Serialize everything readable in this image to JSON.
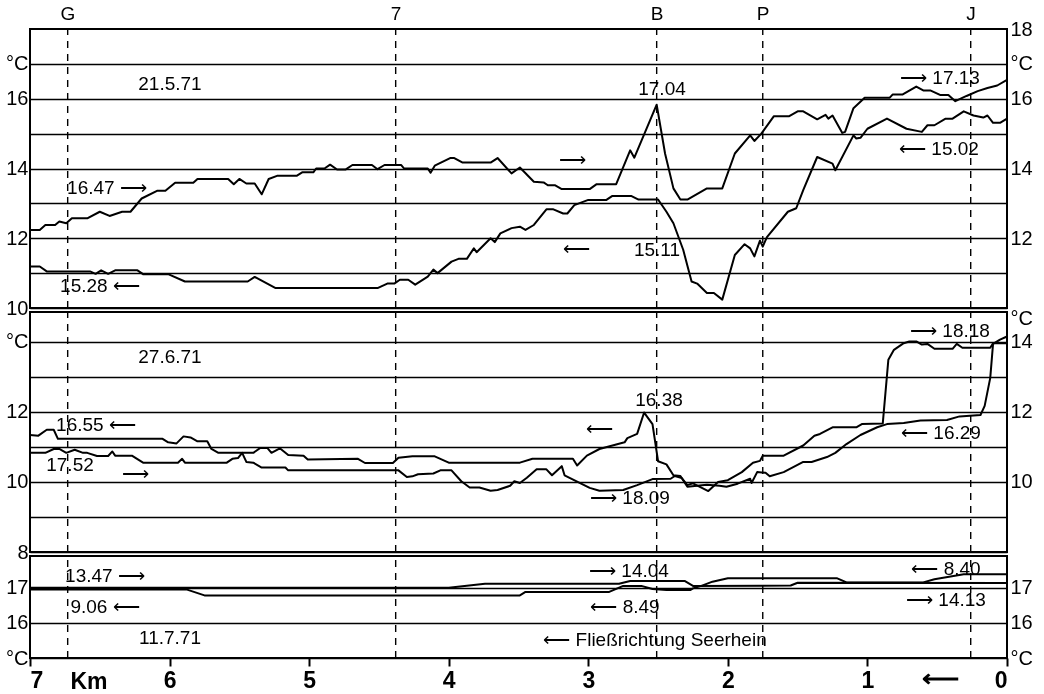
{
  "chart_data": [
    {
      "type": "line",
      "title": "21.5.71",
      "xlim": [
        7,
        0
      ],
      "ylim": [
        10,
        18
      ],
      "yticks": [
        10,
        {
          "value": 11,
          "label": null
        },
        12,
        {
          "value": 13,
          "label": null
        },
        14,
        {
          "value": 15,
          "label": null
        },
        16,
        {
          "value": 17,
          "label": "°C"
        }
      ],
      "y2lim": [
        10,
        18
      ],
      "y2ticks": [
        12,
        14,
        16,
        {
          "value": 17,
          "label": "°C"
        },
        18
      ],
      "grid": "y",
      "tick_labels": "y",
      "line_style": "solid",
      "ref_lines": [
        {
          "axis": "x",
          "value": 6.73,
          "label": null,
          "line_style": "dashed"
        },
        {
          "axis": "x",
          "value": 4.38,
          "label": null,
          "line_style": "dashed"
        },
        {
          "axis": "x",
          "value": 2.51,
          "label": null,
          "line_style": "dashed"
        },
        {
          "axis": "x",
          "value": 1.75,
          "label": null,
          "line_style": "dashed"
        },
        {
          "axis": "x",
          "value": 0.26,
          "label": null,
          "line_style": "dashed"
        }
      ],
      "annotations": [
        "16.47 ⟶",
        "15.28 ⟵",
        "17.04",
        "⟶",
        "⟵",
        "15.11",
        "⟶ 17.13",
        "⟵ 15.02",
        "G",
        "7",
        "B",
        "P",
        "J"
      ],
      "series": [
        {
          "color": "#000000",
          "x": [
            7.0,
            6.93,
            6.89,
            6.82,
            6.79,
            6.74,
            6.7,
            6.59,
            6.5,
            6.43,
            6.34,
            6.28,
            6.2,
            6.09,
            6.03,
            5.96,
            5.83,
            5.8,
            5.58,
            5.54,
            5.5,
            5.45,
            5.39,
            5.34,
            5.29,
            5.23,
            5.09,
            5.05,
            4.97,
            4.95,
            4.89,
            4.85,
            4.8,
            4.74,
            4.69,
            4.55,
            4.51,
            4.46,
            4.34,
            4.32,
            4.15,
            4.13,
            4.1,
            3.99,
            3.96,
            3.9,
            3.7,
            3.65,
            3.55,
            3.49,
            3.39,
            3.32,
            3.29,
            3.24,
            3.19,
            2.99,
            2.94,
            2.8,
            2.7,
            2.67,
            2.51,
            2.45,
            2.39,
            2.34,
            2.29,
            2.15,
            2.04,
            1.95,
            1.84,
            1.81,
            1.76,
            1.67,
            1.56,
            1.5,
            1.46,
            1.36,
            1.3,
            1.28,
            1.25,
            1.18,
            1.16,
            1.1,
            1.02,
            0.84,
            0.82,
            0.75,
            0.65,
            0.6,
            0.55,
            0.48,
            0.42,
            0.37,
            0.29,
            0.21,
            0.14,
            0.07,
            0.0
          ],
          "values": [
            12.24,
            12.24,
            12.38,
            12.38,
            12.48,
            12.43,
            12.57,
            12.57,
            12.76,
            12.64,
            12.76,
            12.76,
            13.14,
            13.36,
            13.36,
            13.59,
            13.59,
            13.7,
            13.7,
            13.55,
            13.7,
            13.57,
            13.57,
            13.26,
            13.7,
            13.79,
            13.79,
            13.89,
            13.89,
            14.0,
            14.0,
            14.11,
            13.97,
            13.97,
            14.1,
            14.1,
            13.98,
            14.1,
            14.1,
            14.0,
            14.0,
            13.88,
            14.08,
            14.3,
            14.3,
            14.17,
            14.17,
            14.3,
            13.86,
            14.03,
            13.62,
            13.6,
            13.52,
            13.52,
            13.41,
            13.41,
            13.55,
            13.55,
            14.52,
            14.31,
            15.83,
            14.43,
            13.43,
            13.11,
            13.11,
            13.43,
            13.43,
            14.43,
            14.95,
            14.79,
            15.0,
            15.5,
            15.5,
            15.64,
            15.64,
            15.41,
            15.54,
            15.43,
            15.52,
            15.02,
            15.05,
            15.73,
            16.03,
            16.03,
            16.12,
            16.12,
            16.35,
            16.24,
            16.24,
            16.11,
            16.11,
            15.93,
            16.08,
            16.22,
            16.31,
            16.38,
            16.54
          ]
        },
        {
          "color": "#000000",
          "x": [
            7.0,
            6.93,
            6.88,
            6.57,
            6.53,
            6.49,
            6.44,
            6.39,
            6.23,
            6.19,
            6.01,
            5.89,
            5.44,
            5.39,
            5.24,
            4.51,
            4.44,
            4.39,
            4.35,
            4.29,
            4.24,
            4.15,
            4.11,
            4.08,
            3.98,
            3.93,
            3.87,
            3.82,
            3.8,
            3.7,
            3.67,
            3.63,
            3.55,
            3.49,
            3.45,
            3.39,
            3.3,
            3.25,
            3.18,
            3.15,
            3.1,
            3.0,
            2.87,
            2.83,
            2.69,
            2.64,
            2.5,
            2.44,
            2.39,
            2.32,
            2.26,
            2.22,
            2.15,
            2.1,
            2.04,
            1.95,
            1.88,
            1.84,
            1.81,
            1.77,
            1.75,
            1.72,
            1.57,
            1.51,
            1.46,
            1.36,
            1.25,
            1.23,
            1.1,
            1.08,
            1.05,
            1.0,
            0.86,
            0.72,
            0.61,
            0.57,
            0.52,
            0.44,
            0.39,
            0.31,
            0.24,
            0.17,
            0.14,
            0.1,
            0.05,
            0.0
          ],
          "values": [
            11.19,
            11.19,
            11.05,
            11.05,
            10.98,
            11.08,
            10.98,
            11.08,
            11.08,
            10.97,
            10.97,
            10.76,
            10.76,
            10.89,
            10.57,
            10.57,
            10.7,
            10.7,
            10.81,
            10.81,
            10.67,
            10.9,
            11.1,
            11.0,
            11.33,
            11.41,
            11.41,
            11.71,
            11.6,
            12.0,
            11.89,
            12.14,
            12.29,
            12.33,
            12.24,
            12.38,
            12.83,
            12.83,
            12.71,
            12.71,
            12.95,
            13.1,
            13.1,
            13.21,
            13.21,
            13.11,
            13.11,
            12.76,
            12.43,
            11.67,
            10.76,
            10.7,
            10.43,
            10.43,
            10.24,
            11.52,
            11.83,
            11.71,
            11.48,
            11.93,
            11.76,
            12.03,
            12.76,
            12.86,
            13.38,
            14.33,
            14.14,
            13.95,
            14.95,
            14.86,
            14.88,
            15.14,
            15.43,
            15.14,
            15.05,
            15.24,
            15.24,
            15.43,
            15.43,
            15.64,
            15.52,
            15.46,
            15.52,
            15.31,
            15.31,
            15.43
          ]
        }
      ]
    },
    {
      "type": "line",
      "title": "27.6.71",
      "xlim": [
        7,
        0
      ],
      "ylim": [
        8,
        14.85
      ],
      "yticks": [
        8,
        {
          "value": 9,
          "label": null
        },
        10,
        {
          "value": 11,
          "label": null
        },
        12,
        {
          "value": 13,
          "label": null
        },
        {
          "value": 14,
          "label": "°C"
        }
      ],
      "y2lim": [
        8,
        14.85
      ],
      "y2ticks": [
        10,
        12,
        14
      ],
      "y2label": "°C",
      "grid": "y",
      "tick_labels": "y",
      "line_style": "solid",
      "ref_lines": [
        {
          "axis": "x",
          "value": 6.73,
          "label": null,
          "line_style": "dashed"
        },
        {
          "axis": "x",
          "value": 4.38,
          "label": null,
          "line_style": "dashed"
        },
        {
          "axis": "x",
          "value": 2.51,
          "label": null,
          "line_style": "dashed"
        },
        {
          "axis": "x",
          "value": 1.75,
          "label": null,
          "line_style": "dashed"
        },
        {
          "axis": "x",
          "value": 0.26,
          "label": null,
          "line_style": "dashed"
        }
      ],
      "annotations": [
        "16.55 ⟵",
        "17.52",
        "⟶",
        "⟵",
        "16.38",
        "⟶ 18.09",
        "⟶ 18.18",
        "⟵ 16.29"
      ],
      "series": [
        {
          "color": "#000000",
          "x": [
            7.0,
            6.94,
            6.88,
            6.83,
            6.8,
            6.05,
            6.01,
            5.95,
            5.9,
            5.85,
            5.8,
            5.73,
            5.7,
            5.65,
            5.4,
            5.35,
            5.3,
            5.27,
            5.21,
            5.15,
            5.04,
            5.01,
            4.65,
            4.6,
            4.4,
            4.36,
            4.26,
            4.1,
            4.0,
            3.49,
            3.4,
            3.11,
            3.08,
            3.01,
            2.92,
            2.8,
            2.74,
            2.72,
            2.65,
            2.6,
            2.54,
            2.5,
            2.44,
            2.39,
            2.34,
            2.29,
            2.15,
            2.06,
            2.01,
            1.93,
            1.84,
            1.83,
            1.79,
            1.73,
            1.7,
            1.6,
            1.46,
            1.4,
            1.29,
            1.23,
            1.15,
            1.05,
            0.93,
            0.86,
            0.74,
            0.62,
            0.43,
            0.34,
            0.19,
            0.16,
            0.12,
            0.1,
            0.05,
            0.0
          ],
          "values": [
            11.34,
            11.32,
            11.49,
            11.49,
            11.23,
            11.23,
            11.13,
            11.1,
            11.3,
            11.27,
            11.16,
            11.16,
            10.94,
            10.83,
            10.83,
            10.97,
            10.97,
            10.83,
            10.96,
            10.77,
            10.75,
            10.64,
            10.66,
            10.54,
            10.54,
            10.69,
            10.73,
            10.73,
            10.55,
            10.55,
            10.66,
            10.66,
            10.47,
            10.75,
            10.94,
            11.07,
            11.13,
            11.25,
            11.37,
            11.98,
            11.65,
            10.59,
            10.5,
            10.19,
            10.17,
            9.86,
            9.92,
            9.89,
            9.86,
            9.95,
            10.09,
            9.97,
            10.28,
            10.26,
            10.16,
            10.28,
            10.57,
            10.57,
            10.71,
            10.83,
            11.08,
            11.34,
            11.56,
            11.65,
            11.68,
            11.75,
            11.77,
            11.87,
            11.91,
            12.17,
            12.97,
            13.94,
            14.06,
            14.15
          ]
        },
        {
          "color": "#000000",
          "x": [
            7.0,
            6.89,
            6.83,
            6.79,
            6.74,
            6.68,
            6.62,
            6.59,
            6.52,
            6.44,
            6.41,
            6.39,
            6.27,
            6.19,
            5.94,
            5.91,
            5.89,
            5.59,
            5.55,
            5.51,
            5.48,
            5.45,
            5.4,
            5.34,
            5.17,
            5.15,
            4.36,
            4.3,
            4.26,
            4.22,
            4.11,
            4.06,
            3.98,
            3.91,
            3.85,
            3.78,
            3.7,
            3.65,
            3.56,
            3.53,
            3.49,
            3.44,
            3.37,
            3.3,
            3.26,
            3.19,
            3.17,
            2.99,
            2.92,
            2.75,
            2.65,
            2.54,
            2.41,
            2.38,
            2.33,
            2.29,
            2.25,
            2.14,
            2.07,
            2.0,
            1.9,
            1.82,
            1.77,
            1.75,
            1.6,
            1.46,
            1.38,
            1.34,
            1.25,
            1.08,
            1.04,
            0.89,
            0.85,
            0.81,
            0.74,
            0.7,
            0.65,
            0.61,
            0.57,
            0.52,
            0.39,
            0.36,
            0.32,
            0.12,
            0.1,
            0.0
          ],
          "values": [
            10.83,
            10.83,
            10.94,
            10.94,
            10.83,
            10.92,
            10.83,
            10.83,
            10.74,
            10.74,
            10.87,
            10.75,
            10.75,
            10.55,
            10.55,
            10.66,
            10.55,
            10.55,
            10.66,
            10.68,
            10.83,
            10.57,
            10.55,
            10.41,
            10.41,
            10.33,
            10.33,
            10.14,
            10.16,
            10.22,
            10.24,
            10.33,
            10.33,
            10.02,
            9.84,
            9.84,
            9.75,
            9.77,
            9.89,
            10.02,
            9.97,
            10.12,
            10.36,
            10.36,
            10.19,
            10.45,
            10.19,
            9.83,
            9.75,
            9.77,
            9.91,
            10.08,
            10.09,
            10.17,
            10.11,
            9.91,
            9.96,
            9.74,
            10.0,
            10.05,
            10.28,
            10.55,
            10.6,
            10.75,
            10.75,
            11.04,
            11.32,
            11.37,
            11.56,
            11.56,
            11.65,
            11.67,
            13.49,
            13.77,
            13.96,
            14.01,
            14.01,
            13.92,
            13.94,
            13.8,
            13.8,
            13.94,
            13.83,
            13.83,
            13.96,
            13.96
          ]
        }
      ]
    },
    {
      "type": "line",
      "title": "11.7.71",
      "xlabel": "Km",
      "xlim": [
        7,
        0
      ],
      "xticks": [
        7,
        6,
        5,
        4,
        3,
        2,
        1,
        0
      ],
      "ylim": [
        15,
        17.9
      ],
      "yticks": [
        {
          "value": 15,
          "label": "°C"
        },
        16,
        17
      ],
      "y2lim": [
        15,
        17.9
      ],
      "y2ticks": [
        {
          "value": 15,
          "label": "°C"
        },
        16,
        17
      ],
      "grid": "y",
      "line_style": "solid",
      "ref_lines": [
        {
          "axis": "x",
          "value": 6.73,
          "label": null,
          "line_style": "dashed"
        },
        {
          "axis": "x",
          "value": 4.38,
          "label": null,
          "line_style": "dashed"
        },
        {
          "axis": "x",
          "value": 2.51,
          "label": null,
          "line_style": "dashed"
        },
        {
          "axis": "x",
          "value": 1.75,
          "label": null,
          "line_style": "dashed"
        },
        {
          "axis": "x",
          "value": 0.26,
          "label": null,
          "line_style": "dashed"
        }
      ],
      "annotations": [
        "13.47 ⟶",
        "9.06 ⟵",
        "⟶ 14.04",
        "⟵ 8.49",
        "⟵ 8.40",
        "⟶ 14.13",
        "⟵ Fließrichtung Seerhein",
        "⟵"
      ],
      "series": [
        {
          "color": "#000000",
          "x": [
            7.0,
            4.0,
            3.74,
            2.78,
            2.7,
            2.31,
            2.25,
            1.55,
            1.5,
            0.0
          ],
          "values": [
            17.0,
            17.0,
            17.11,
            17.11,
            17.19,
            17.19,
            17.05,
            17.06,
            17.14,
            17.13
          ]
        },
        {
          "color": "#000000",
          "x": [
            7.0,
            5.88,
            5.75,
            3.49,
            3.45,
            2.85,
            2.75,
            2.62,
            2.54,
            2.44,
            2.27,
            2.25,
            2.19,
            2.11,
            2.0,
            1.22,
            1.15,
            0.6,
            0.52,
            0.31,
            0.0
          ],
          "values": [
            16.95,
            16.95,
            16.78,
            16.78,
            16.88,
            16.88,
            17.05,
            17.05,
            16.96,
            16.93,
            16.93,
            16.98,
            17.05,
            17.17,
            17.27,
            17.27,
            17.15,
            17.15,
            17.24,
            17.38,
            17.38
          ]
        }
      ]
    }
  ]
}
